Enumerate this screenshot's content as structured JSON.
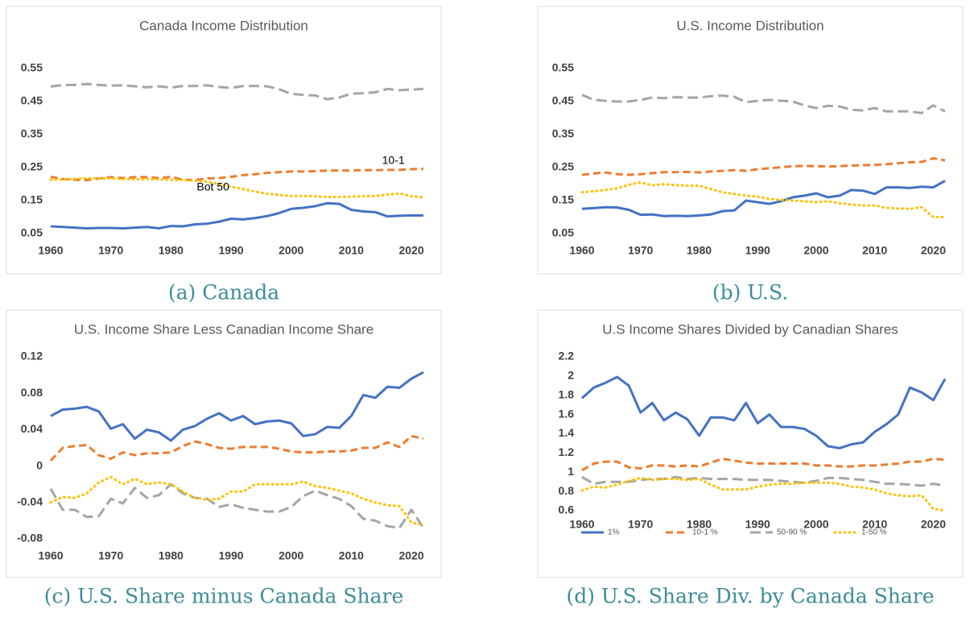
{
  "chart_data": [
    {
      "type": "line",
      "title": "Canada Income Distribution",
      "caption": "(a) Canada",
      "x": [
        1960,
        1962,
        1964,
        1966,
        1968,
        1970,
        1972,
        1974,
        1976,
        1978,
        1980,
        1982,
        1984,
        1986,
        1988,
        1990,
        1992,
        1994,
        1996,
        1998,
        2000,
        2002,
        2004,
        2006,
        2008,
        2010,
        2012,
        2014,
        2016,
        2018,
        2020,
        2022
      ],
      "xlim": [
        1960,
        2022
      ],
      "xticks": [
        1960,
        1970,
        1980,
        1990,
        2000,
        2010,
        2020
      ],
      "ylim": [
        0.05,
        0.55
      ],
      "yticks": [
        0.05,
        0.15,
        0.25,
        0.35,
        0.45,
        0.55
      ],
      "series": [
        {
          "color": "#4472c4",
          "style": "solid",
          "values": [
            0.072,
            0.07,
            0.068,
            0.066,
            0.067,
            0.067,
            0.066,
            0.068,
            0.07,
            0.066,
            0.073,
            0.072,
            0.078,
            0.08,
            0.086,
            0.095,
            0.093,
            0.097,
            0.103,
            0.112,
            0.125,
            0.128,
            0.133,
            0.142,
            0.14,
            0.122,
            0.117,
            0.115,
            0.102,
            0.104,
            0.105,
            0.105
          ]
        },
        {
          "color": "#ed7d31",
          "style": "dash",
          "values": [
            0.222,
            0.215,
            0.213,
            0.212,
            0.217,
            0.221,
            0.218,
            0.221,
            0.221,
            0.218,
            0.222,
            0.213,
            0.212,
            0.217,
            0.218,
            0.222,
            0.227,
            0.23,
            0.234,
            0.236,
            0.238,
            0.238,
            0.239,
            0.241,
            0.241,
            0.241,
            0.242,
            0.242,
            0.243,
            0.243,
            0.245,
            0.246
          ]
        },
        {
          "color": "#a5a5a5",
          "style": "longdash",
          "values": [
            0.495,
            0.5,
            0.5,
            0.503,
            0.5,
            0.498,
            0.499,
            0.496,
            0.493,
            0.496,
            0.492,
            0.497,
            0.497,
            0.499,
            0.494,
            0.491,
            0.497,
            0.497,
            0.496,
            0.487,
            0.473,
            0.47,
            0.468,
            0.457,
            0.462,
            0.474,
            0.475,
            0.478,
            0.488,
            0.484,
            0.486,
            0.488
          ]
        },
        {
          "color": "#ffc000",
          "style": "dot",
          "values": [
            0.213,
            0.214,
            0.216,
            0.218,
            0.217,
            0.217,
            0.215,
            0.214,
            0.215,
            0.214,
            0.213,
            0.212,
            0.21,
            0.207,
            0.2,
            0.192,
            0.185,
            0.177,
            0.171,
            0.167,
            0.164,
            0.164,
            0.163,
            0.161,
            0.161,
            0.162,
            0.163,
            0.164,
            0.168,
            0.172,
            0.163,
            0.16
          ]
        }
      ],
      "annotations": [
        {
          "text": "10-1",
          "x": 2017,
          "y": 0.27
        },
        {
          "text": "Bot 50",
          "x": 1987,
          "y": 0.19
        }
      ]
    },
    {
      "type": "line",
      "title": "U.S. Income Distribution",
      "caption": "(b) U.S.",
      "x": [
        1960,
        1962,
        1964,
        1966,
        1968,
        1970,
        1972,
        1974,
        1976,
        1978,
        1980,
        1982,
        1984,
        1986,
        1988,
        1990,
        1992,
        1994,
        1996,
        1998,
        2000,
        2002,
        2004,
        2006,
        2008,
        2010,
        2012,
        2014,
        2016,
        2018,
        2020,
        2022
      ],
      "xlim": [
        1960,
        2022
      ],
      "xticks": [
        1960,
        1970,
        1980,
        1990,
        2000,
        2010,
        2020
      ],
      "ylim": [
        0.05,
        0.55
      ],
      "yticks": [
        0.05,
        0.15,
        0.25,
        0.35,
        0.45,
        0.55
      ],
      "series": [
        {
          "color": "#4472c4",
          "style": "solid",
          "values": [
            0.125,
            0.127,
            0.13,
            0.129,
            0.122,
            0.107,
            0.108,
            0.103,
            0.104,
            0.103,
            0.105,
            0.108,
            0.118,
            0.12,
            0.15,
            0.145,
            0.14,
            0.148,
            0.16,
            0.165,
            0.172,
            0.16,
            0.165,
            0.182,
            0.18,
            0.17,
            0.19,
            0.19,
            0.188,
            0.192,
            0.19,
            0.21
          ]
        },
        {
          "color": "#ed7d31",
          "style": "dash",
          "values": [
            0.228,
            0.232,
            0.235,
            0.23,
            0.228,
            0.23,
            0.233,
            0.236,
            0.236,
            0.237,
            0.235,
            0.238,
            0.24,
            0.242,
            0.24,
            0.245,
            0.248,
            0.251,
            0.254,
            0.255,
            0.254,
            0.253,
            0.254,
            0.256,
            0.257,
            0.258,
            0.26,
            0.263,
            0.266,
            0.267,
            0.278,
            0.272
          ]
        },
        {
          "color": "#a5a5a5",
          "style": "longdash",
          "values": [
            0.47,
            0.455,
            0.452,
            0.45,
            0.45,
            0.455,
            0.462,
            0.46,
            0.463,
            0.462,
            0.462,
            0.466,
            0.468,
            0.464,
            0.448,
            0.452,
            0.455,
            0.452,
            0.45,
            0.438,
            0.43,
            0.437,
            0.435,
            0.425,
            0.423,
            0.43,
            0.42,
            0.42,
            0.42,
            0.415,
            0.438,
            0.42
          ]
        },
        {
          "color": "#ffc000",
          "style": "dot",
          "values": [
            0.175,
            0.178,
            0.182,
            0.187,
            0.198,
            0.205,
            0.196,
            0.2,
            0.197,
            0.195,
            0.195,
            0.185,
            0.175,
            0.17,
            0.165,
            0.162,
            0.155,
            0.152,
            0.15,
            0.148,
            0.145,
            0.148,
            0.142,
            0.138,
            0.135,
            0.135,
            0.128,
            0.126,
            0.125,
            0.13,
            0.1,
            0.1
          ]
        }
      ]
    },
    {
      "type": "line",
      "title": "U.S. Income Share Less Canadian Income Share",
      "caption": "(c) U.S. Share minus Canada Share",
      "x": [
        1960,
        1962,
        1964,
        1966,
        1968,
        1970,
        1972,
        1974,
        1976,
        1978,
        1980,
        1982,
        1984,
        1986,
        1988,
        1990,
        1992,
        1994,
        1996,
        1998,
        2000,
        2002,
        2004,
        2006,
        2008,
        2010,
        2012,
        2014,
        2016,
        2018,
        2020,
        2022
      ],
      "xlim": [
        1960,
        2022
      ],
      "xticks": [
        1960,
        1970,
        1980,
        1990,
        2000,
        2010,
        2020
      ],
      "ylim": [
        -0.08,
        0.12
      ],
      "yticks": [
        -0.08,
        -0.04,
        0,
        0.04,
        0.08,
        0.12
      ],
      "series": [
        {
          "color": "#4472c4",
          "style": "solid",
          "values": [
            0.055,
            0.062,
            0.063,
            0.065,
            0.06,
            0.041,
            0.046,
            0.03,
            0.04,
            0.037,
            0.028,
            0.04,
            0.044,
            0.052,
            0.058,
            0.05,
            0.055,
            0.046,
            0.049,
            0.05,
            0.047,
            0.033,
            0.035,
            0.043,
            0.042,
            0.055,
            0.078,
            0.075,
            0.087,
            0.086,
            0.096,
            0.103
          ]
        },
        {
          "color": "#ed7d31",
          "style": "dash",
          "values": [
            0.006,
            0.02,
            0.022,
            0.023,
            0.012,
            0.008,
            0.015,
            0.012,
            0.014,
            0.014,
            0.015,
            0.022,
            0.027,
            0.024,
            0.02,
            0.019,
            0.021,
            0.021,
            0.021,
            0.019,
            0.016,
            0.015,
            0.015,
            0.016,
            0.016,
            0.017,
            0.02,
            0.02,
            0.026,
            0.021,
            0.033,
            0.03
          ]
        },
        {
          "color": "#a5a5a5",
          "style": "longdash",
          "values": [
            -0.025,
            -0.048,
            -0.048,
            -0.056,
            -0.055,
            -0.036,
            -0.041,
            -0.024,
            -0.035,
            -0.032,
            -0.02,
            -0.03,
            -0.035,
            -0.036,
            -0.045,
            -0.042,
            -0.046,
            -0.048,
            -0.05,
            -0.05,
            -0.045,
            -0.033,
            -0.027,
            -0.032,
            -0.036,
            -0.044,
            -0.058,
            -0.06,
            -0.066,
            -0.068,
            -0.048,
            -0.068
          ]
        },
        {
          "color": "#ffc000",
          "style": "dot",
          "values": [
            -0.04,
            -0.034,
            -0.035,
            -0.03,
            -0.018,
            -0.012,
            -0.02,
            -0.014,
            -0.02,
            -0.018,
            -0.02,
            -0.028,
            -0.035,
            -0.037,
            -0.036,
            -0.028,
            -0.028,
            -0.02,
            -0.02,
            -0.02,
            -0.02,
            -0.017,
            -0.022,
            -0.024,
            -0.027,
            -0.03,
            -0.036,
            -0.04,
            -0.043,
            -0.044,
            -0.062,
            -0.065
          ]
        }
      ]
    },
    {
      "type": "line",
      "title": "U.S Income Shares Divided by Canadian Shares",
      "caption": "(d) U.S. Share Div. by Canada Share",
      "x": [
        1960,
        1962,
        1964,
        1966,
        1968,
        1970,
        1972,
        1974,
        1976,
        1978,
        1980,
        1982,
        1984,
        1986,
        1988,
        1990,
        1992,
        1994,
        1996,
        1998,
        2000,
        2002,
        2004,
        2006,
        2008,
        2010,
        2012,
        2014,
        2016,
        2018,
        2020,
        2022
      ],
      "xlim": [
        1960,
        2022
      ],
      "xticks": [
        1960,
        1970,
        1980,
        1990,
        2000,
        2010,
        2020
      ],
      "ylim": [
        0.6,
        2.2
      ],
      "yticks": [
        0.6,
        0.8,
        1,
        1.2,
        1.4,
        1.6,
        1.8,
        2,
        2.2
      ],
      "legend": "bottom",
      "series": [
        {
          "name": "1%",
          "color": "#4472c4",
          "style": "solid",
          "values": [
            1.77,
            1.88,
            1.93,
            1.99,
            1.9,
            1.62,
            1.72,
            1.54,
            1.62,
            1.55,
            1.38,
            1.57,
            1.57,
            1.54,
            1.72,
            1.51,
            1.6,
            1.47,
            1.47,
            1.45,
            1.38,
            1.27,
            1.25,
            1.29,
            1.31,
            1.42,
            1.5,
            1.6,
            1.88,
            1.83,
            1.75,
            1.97
          ]
        },
        {
          "name": "10-1 %",
          "color": "#ed7d31",
          "style": "dash",
          "values": [
            1.02,
            1.09,
            1.11,
            1.11,
            1.05,
            1.04,
            1.07,
            1.07,
            1.06,
            1.07,
            1.06,
            1.1,
            1.14,
            1.12,
            1.1,
            1.09,
            1.09,
            1.09,
            1.09,
            1.09,
            1.07,
            1.07,
            1.06,
            1.06,
            1.07,
            1.07,
            1.08,
            1.09,
            1.11,
            1.11,
            1.14,
            1.13
          ]
        },
        {
          "name": "50-90 %",
          "color": "#a5a5a5",
          "style": "longdash",
          "values": [
            0.95,
            0.88,
            0.9,
            0.9,
            0.9,
            0.92,
            0.93,
            0.93,
            0.95,
            0.93,
            0.94,
            0.93,
            0.93,
            0.93,
            0.92,
            0.92,
            0.92,
            0.91,
            0.9,
            0.89,
            0.91,
            0.94,
            0.94,
            0.93,
            0.92,
            0.9,
            0.88,
            0.88,
            0.87,
            0.86,
            0.88,
            0.86
          ]
        },
        {
          "name": "1-50 %",
          "color": "#ffc000",
          "style": "dot",
          "values": [
            0.81,
            0.85,
            0.84,
            0.87,
            0.91,
            0.94,
            0.92,
            0.93,
            0.93,
            0.92,
            0.93,
            0.87,
            0.82,
            0.82,
            0.82,
            0.85,
            0.87,
            0.88,
            0.88,
            0.89,
            0.89,
            0.89,
            0.88,
            0.85,
            0.84,
            0.82,
            0.78,
            0.76,
            0.75,
            0.76,
            0.62,
            0.6
          ]
        }
      ]
    }
  ]
}
